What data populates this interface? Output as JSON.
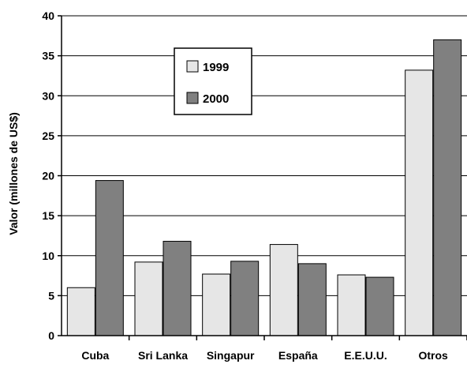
{
  "chart_data": {
    "type": "bar",
    "categories": [
      "Cuba",
      "Sri Lanka",
      "Singapur",
      "España",
      "E.E.U.U.",
      "Otros"
    ],
    "series": [
      {
        "name": "1999",
        "values": [
          6.0,
          9.2,
          7.7,
          11.4,
          7.6,
          33.2
        ],
        "color": "#e6e6e6"
      },
      {
        "name": "2000",
        "values": [
          19.4,
          11.8,
          9.3,
          9.0,
          7.3,
          37.0
        ],
        "color": "#808080"
      }
    ],
    "title": "",
    "xlabel": "",
    "ylabel": "Valor (millones de US$)",
    "ylim": [
      0,
      40
    ],
    "yticks": [
      0,
      5,
      10,
      15,
      20,
      25,
      30,
      35,
      40
    ],
    "grid": true,
    "legend_position": "top-center"
  }
}
